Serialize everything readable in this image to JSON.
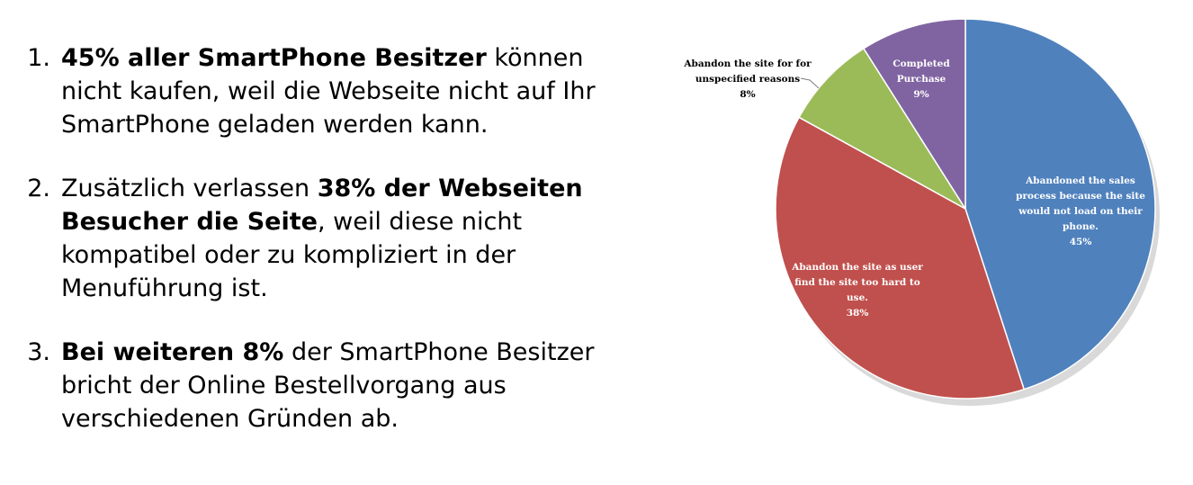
{
  "points": [
    {
      "number": "1.",
      "bold": "45% aller SmartPhone Besitzer",
      "text_before": "",
      "text_after": " können nicht kaufen, weil die Webseite nicht auf Ihr SmartPhone geladen werden kann."
    },
    {
      "number": "2.",
      "bold": "38% der Webseiten Besucher die Seite",
      "text_before": "Zusätzlich verlassen ",
      "text_after": ", weil diese nicht kompatibel oder zu kompliziert in der Menuführung ist."
    },
    {
      "number": "3.",
      "bold": "Bei weiteren 8%",
      "text_before": "",
      "text_after": " der SmartPhone Besitzer bricht der Online Bestellvorgang aus verschiedenen Gründen ab."
    }
  ],
  "chart_data": {
    "type": "pie",
    "start_angle_deg": 0,
    "direction": "clockwise",
    "slices": [
      {
        "label_lines": [
          "Abandoned the sales",
          "process because the site",
          "would not load on their",
          "phone."
        ],
        "value": 45,
        "value_label": "45%",
        "color": "#4f81bd",
        "label_color": "#ffffff"
      },
      {
        "label_lines": [
          "Abandon the site as user",
          "find the site too hard to",
          "use."
        ],
        "value": 38,
        "value_label": "38%",
        "color": "#c0504d",
        "label_color": "#ffffff"
      },
      {
        "label_lines": [
          "Abandon the site for for",
          "unspecified reasons"
        ],
        "value": 8,
        "value_label": "8%",
        "color": "#9bbb59",
        "label_color": "#000000"
      },
      {
        "label_lines": [
          "Completed",
          "Purchase"
        ],
        "value": 9,
        "value_label": "9%",
        "color": "#8064a2",
        "label_color": "#ffffff"
      }
    ]
  }
}
